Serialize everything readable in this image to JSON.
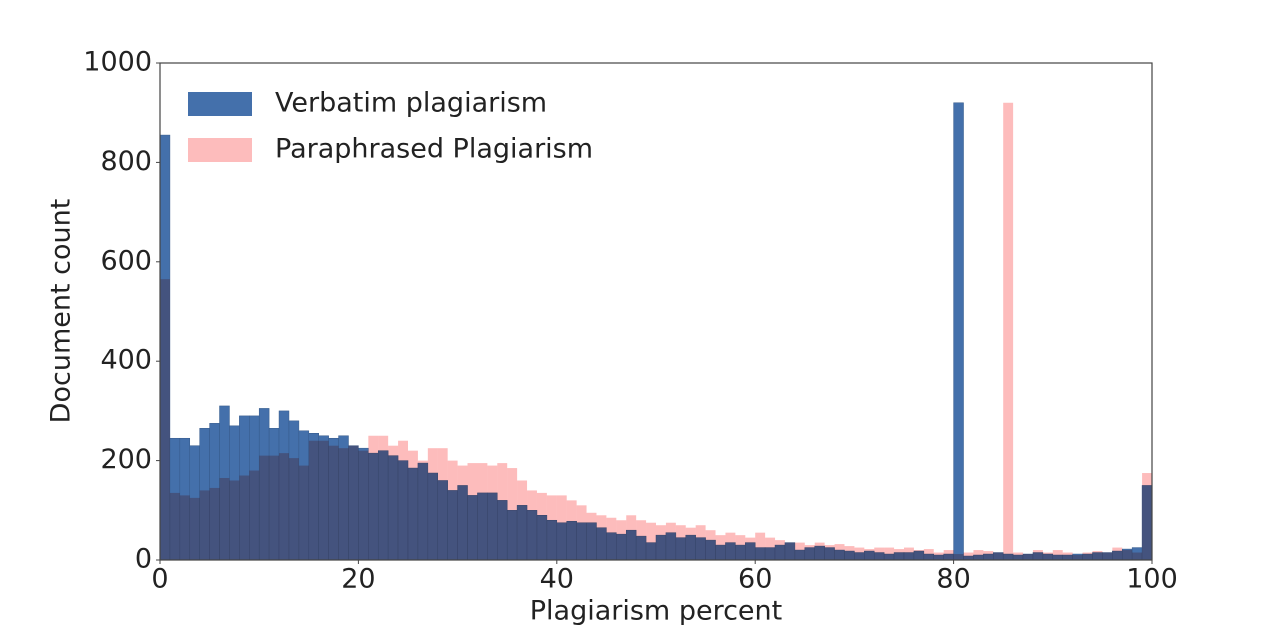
{
  "chart_data": {
    "type": "histogram",
    "xlabel": "Plagiarism percent",
    "ylabel": "Document count",
    "bins": [
      0,
      1,
      2,
      3,
      4,
      5,
      6,
      7,
      8,
      9,
      10,
      11,
      12,
      13,
      14,
      15,
      16,
      17,
      18,
      19,
      20,
      21,
      22,
      23,
      24,
      25,
      26,
      27,
      28,
      29,
      30,
      31,
      32,
      33,
      34,
      35,
      36,
      37,
      38,
      39,
      40,
      41,
      42,
      43,
      44,
      45,
      46,
      47,
      48,
      49,
      50,
      51,
      52,
      53,
      54,
      55,
      56,
      57,
      58,
      59,
      60,
      61,
      62,
      63,
      64,
      65,
      66,
      67,
      68,
      69,
      70,
      71,
      72,
      73,
      74,
      75,
      76,
      77,
      78,
      79,
      80,
      81,
      82,
      83,
      84,
      85,
      86,
      87,
      88,
      89,
      90,
      91,
      92,
      93,
      94,
      95,
      96,
      97,
      98,
      99,
      100
    ],
    "series": [
      {
        "name": "Verbatim plagiarism",
        "color": "#4470ab",
        "values": [
          855,
          245,
          245,
          230,
          265,
          275,
          310,
          270,
          290,
          290,
          305,
          265,
          300,
          280,
          260,
          255,
          250,
          245,
          250,
          230,
          225,
          215,
          220,
          210,
          200,
          185,
          195,
          175,
          160,
          140,
          150,
          130,
          135,
          135,
          120,
          100,
          110,
          100,
          90,
          80,
          75,
          78,
          75,
          75,
          65,
          55,
          52,
          60,
          48,
          35,
          50,
          55,
          45,
          50,
          45,
          40,
          30,
          35,
          30,
          35,
          25,
          25,
          30,
          35,
          20,
          25,
          28,
          25,
          20,
          18,
          15,
          18,
          15,
          12,
          15,
          15,
          18,
          12,
          10,
          12,
          920,
          8,
          10,
          12,
          15,
          12,
          10,
          12,
          15,
          12,
          10,
          10,
          12,
          12,
          15,
          15,
          18,
          22,
          25,
          150
        ]
      },
      {
        "name": "Paraphrased Plagiarism",
        "color": "#fdbcbc",
        "values": [
          565,
          135,
          130,
          125,
          140,
          145,
          165,
          160,
          170,
          180,
          210,
          210,
          215,
          205,
          190,
          240,
          240,
          230,
          225,
          230,
          220,
          250,
          250,
          230,
          240,
          220,
          200,
          225,
          225,
          200,
          190,
          195,
          195,
          190,
          195,
          185,
          160,
          140,
          135,
          130,
          130,
          120,
          110,
          95,
          90,
          85,
          80,
          90,
          80,
          75,
          70,
          75,
          70,
          65,
          70,
          60,
          50,
          55,
          50,
          45,
          55,
          45,
          40,
          35,
          35,
          30,
          35,
          30,
          32,
          28,
          25,
          22,
          25,
          25,
          22,
          25,
          20,
          22,
          15,
          20,
          12,
          15,
          20,
          18,
          15,
          920,
          15,
          12,
          20,
          15,
          20,
          15,
          10,
          15,
          18,
          15,
          25,
          20,
          15,
          175
        ]
      }
    ],
    "xlim": [
      0,
      100
    ],
    "xticks": [
      0,
      20,
      40,
      60,
      80,
      100
    ],
    "ylim": [
      0,
      1000
    ],
    "yticks": [
      0,
      200,
      400,
      600,
      800,
      1000
    ],
    "legend": "upper left"
  }
}
